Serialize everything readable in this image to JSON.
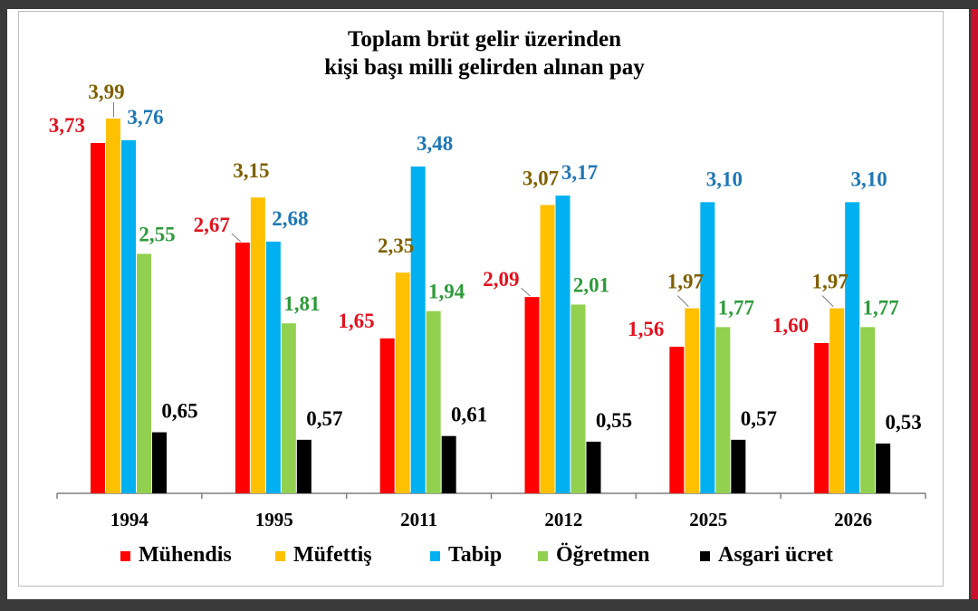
{
  "chart_data": {
    "type": "bar",
    "title_lines": [
      "Toplam brüt gelir üzerinden",
      "kişi başı milli gelirden alınan pay"
    ],
    "categories": [
      "1994",
      "1995",
      "2011",
      "2012",
      "2025",
      "2026"
    ],
    "ylim": [
      0,
      4.35
    ],
    "grid": false,
    "legend_position": "bottom",
    "series": [
      {
        "name": "Mühendis",
        "color": "#ff0000",
        "label_color": "#e0121f",
        "values": [
          3.73,
          2.67,
          1.65,
          2.09,
          1.56,
          1.6
        ],
        "labels": [
          "3,73",
          "2,67",
          "1,65",
          "2,09",
          "1,56",
          "1,60"
        ]
      },
      {
        "name": "Müfettiş",
        "color": "#ffc000",
        "label_color": "#7f6000",
        "values": [
          3.99,
          3.15,
          2.35,
          3.07,
          1.97,
          1.97
        ],
        "labels": [
          "3,99",
          "3,15",
          "2,35",
          "3,07",
          "1,97",
          "1,97"
        ]
      },
      {
        "name": "Tabip",
        "color": "#00b0f0",
        "label_color": "#1f77b4",
        "values": [
          3.76,
          2.68,
          3.48,
          3.17,
          3.1,
          3.1
        ],
        "labels": [
          "3,76",
          "2,68",
          "3,48",
          "3,17",
          "3,10",
          "3,10"
        ]
      },
      {
        "name": "Öğretmen",
        "color": "#92d050",
        "label_color": "#2e9a3a",
        "values": [
          2.55,
          1.81,
          1.94,
          2.01,
          1.77,
          1.77
        ],
        "labels": [
          "2,55",
          "1,81",
          "1,94",
          "2,01",
          "1,77",
          "1,77"
        ]
      },
      {
        "name": "Asgari ücret",
        "color": "#000000",
        "label_color": "#000000",
        "values": [
          0.65,
          0.57,
          0.61,
          0.55,
          0.57,
          0.53
        ],
        "labels": [
          "0,65",
          "0,57",
          "0,61",
          "0,55",
          "0,57",
          "0,53"
        ]
      }
    ]
  }
}
